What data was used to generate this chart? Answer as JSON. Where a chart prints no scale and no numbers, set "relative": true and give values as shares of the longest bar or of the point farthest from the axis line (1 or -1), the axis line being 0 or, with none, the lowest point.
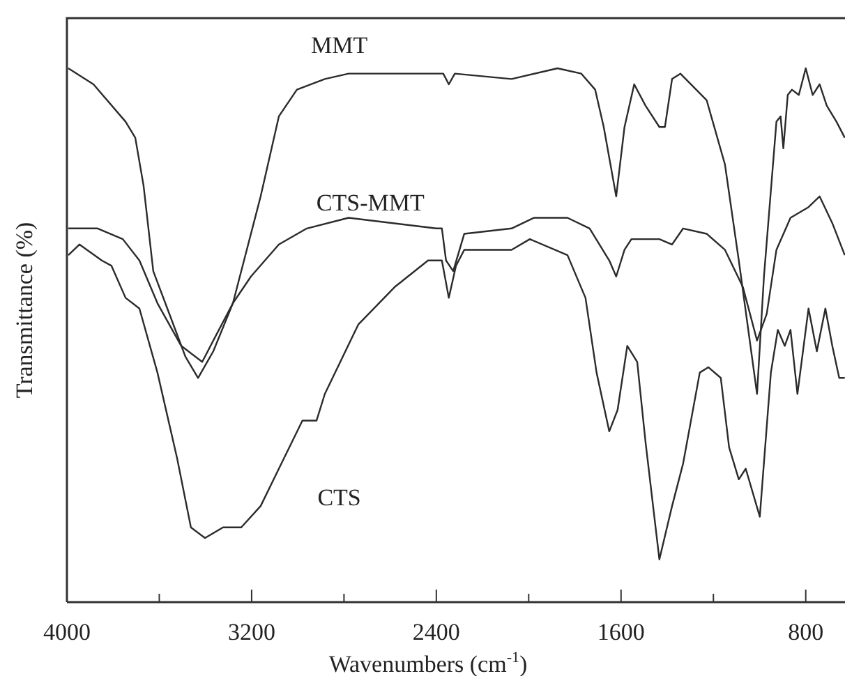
{
  "chart_data": {
    "type": "line",
    "relative": true,
    "xlabel": "Wavenumbers (cm$^{-1}$)",
    "ylabel": "Transmittance (%)",
    "xlim": [
      4000,
      630
    ],
    "xticks": [
      4000,
      {
        "value": 3600,
        "label": null
      },
      3200,
      {
        "value": 2800,
        "label": null
      },
      2400,
      {
        "value": 2000,
        "label": null
      },
      1600,
      {
        "value": 1200,
        "label": null
      },
      800
    ],
    "grid": false,
    "legend": false,
    "marker": "none",
    "line_style": "solid",
    "series": [
      {
        "name": "MMT",
        "color": "#2b2b2b",
        "x": [
          3994,
          3885,
          3746,
          3704,
          3668,
          3626,
          3565,
          3487,
          3432,
          3366,
          3281,
          3161,
          3082,
          3004,
          2883,
          2780,
          2388,
          2370,
          2346,
          2320,
          2074,
          1875,
          1772,
          1712,
          1675,
          1621,
          1585,
          1543,
          1494,
          1434,
          1410,
          1379,
          1343,
          1229,
          1150,
          1090,
          1011,
          981,
          927,
          909,
          897,
          878,
          860,
          830,
          800,
          770,
          740,
          709,
          667,
          631
        ],
        "values": [
          1.0,
          0.97,
          0.9,
          0.87,
          0.78,
          0.62,
          0.55,
          0.46,
          0.42,
          0.47,
          0.56,
          0.76,
          0.91,
          0.96,
          0.98,
          0.99,
          0.99,
          0.99,
          0.97,
          0.99,
          0.98,
          1.0,
          0.99,
          0.96,
          0.89,
          0.76,
          0.89,
          0.97,
          0.93,
          0.89,
          0.89,
          0.98,
          0.99,
          0.94,
          0.82,
          0.64,
          0.39,
          0.61,
          0.9,
          0.91,
          0.85,
          0.95,
          0.96,
          0.95,
          1.0,
          0.95,
          0.97,
          0.93,
          0.9,
          0.87
        ]
      },
      {
        "name": "CTS-MMT",
        "color": "#2b2b2b",
        "x": [
          3994,
          3867,
          3758,
          3686,
          3608,
          3505,
          3414,
          3366,
          3281,
          3203,
          3082,
          2961,
          2780,
          2400,
          2376,
          2358,
          2327,
          2279,
          2074,
          1977,
          1832,
          1736,
          1651,
          1621,
          1585,
          1555,
          1494,
          1434,
          1379,
          1331,
          1229,
          1150,
          1072,
          1011,
          969,
          927,
          866,
          788,
          740,
          685,
          631
        ],
        "values": [
          0.7,
          0.7,
          0.68,
          0.64,
          0.56,
          0.48,
          0.45,
          0.49,
          0.56,
          0.61,
          0.67,
          0.7,
          0.72,
          0.7,
          0.7,
          0.64,
          0.62,
          0.69,
          0.7,
          0.72,
          0.72,
          0.7,
          0.64,
          0.61,
          0.66,
          0.68,
          0.68,
          0.68,
          0.67,
          0.7,
          0.69,
          0.66,
          0.59,
          0.49,
          0.54,
          0.66,
          0.72,
          0.74,
          0.76,
          0.71,
          0.65
        ]
      },
      {
        "name": "CTS",
        "color": "#2b2b2b",
        "x": [
          3994,
          3946,
          3849,
          3807,
          3746,
          3686,
          3608,
          3523,
          3463,
          3402,
          3324,
          3245,
          3161,
          3082,
          2980,
          2919,
          2883,
          2738,
          2581,
          2436,
          2376,
          2346,
          2315,
          2279,
          2074,
          1995,
          1832,
          1754,
          1706,
          1651,
          1615,
          1573,
          1530,
          1494,
          1434,
          1379,
          1331,
          1259,
          1222,
          1168,
          1132,
          1090,
          1060,
          999,
          951,
          921,
          891,
          866,
          836,
          788,
          752,
          715,
          685,
          655,
          631
        ],
        "values": [
          0.65,
          0.67,
          0.64,
          0.63,
          0.57,
          0.55,
          0.43,
          0.27,
          0.14,
          0.12,
          0.14,
          0.14,
          0.18,
          0.25,
          0.34,
          0.34,
          0.39,
          0.52,
          0.59,
          0.64,
          0.64,
          0.57,
          0.63,
          0.66,
          0.66,
          0.68,
          0.65,
          0.57,
          0.43,
          0.32,
          0.36,
          0.48,
          0.45,
          0.3,
          0.08,
          0.18,
          0.26,
          0.43,
          0.44,
          0.42,
          0.29,
          0.23,
          0.25,
          0.16,
          0.43,
          0.51,
          0.48,
          0.51,
          0.39,
          0.55,
          0.47,
          0.55,
          0.48,
          0.42,
          0.42
        ]
      }
    ]
  }
}
